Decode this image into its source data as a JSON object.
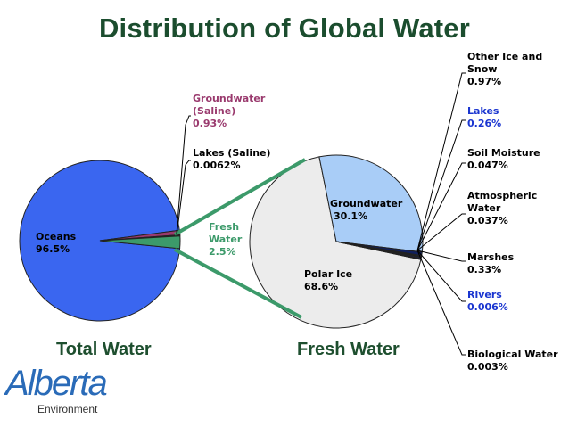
{
  "chart_data": [
    {
      "type": "pie",
      "title": "Distribution of Global Water",
      "caption": "Total Water",
      "slices": [
        {
          "label": "Oceans",
          "value": 96.5,
          "value_label": "96.5%",
          "color": "#3a66f0"
        },
        {
          "label": "Groundwater (Saline)",
          "value": 0.93,
          "value_label": "0.93%",
          "color": "#9a3a6e"
        },
        {
          "label": "Lakes (Saline)",
          "value": 0.0062,
          "value_label": "0.0062%",
          "color": "#333333"
        },
        {
          "label": "Fresh Water",
          "value": 2.5,
          "value_label": "2.5%",
          "color": "#3c9a6a"
        }
      ]
    },
    {
      "type": "pie",
      "caption": "Fresh Water",
      "slices": [
        {
          "label": "Polar Ice",
          "value": 68.6,
          "value_label": "68.6%",
          "color": "#ececec"
        },
        {
          "label": "Groundwater",
          "value": 30.1,
          "value_label": "30.1%",
          "color": "#a9cdf7"
        },
        {
          "label": "Other Ice and Snow",
          "value": 0.97,
          "value_label": "0.97%",
          "color": "#10205e"
        },
        {
          "label": "Lakes",
          "value": 0.26,
          "value_label": "0.26%",
          "color": "#1a2f9a"
        },
        {
          "label": "Soil Moisture",
          "value": 0.047,
          "value_label": "0.047%",
          "color": "#000000"
        },
        {
          "label": "Atmospheric Water",
          "value": 0.037,
          "value_label": "0.037%",
          "color": "#000000"
        },
        {
          "label": "Marshes",
          "value": 0.33,
          "value_label": "0.33%",
          "color": "#1a2f9a"
        },
        {
          "label": "Rivers",
          "value": 0.006,
          "value_label": "0.006%",
          "color": "#000000"
        },
        {
          "label": "Biological Water",
          "value": 0.003,
          "value_label": "0.003%",
          "color": "#000000"
        }
      ]
    }
  ],
  "labels": {
    "oceans": {
      "name": "Oceans",
      "value": "96.5%"
    },
    "groundwater_saline": {
      "line1": "Groundwater",
      "line2": "(Saline)",
      "value": "0.93%"
    },
    "lakes_saline": {
      "name": "Lakes (Saline)",
      "value": "0.0062%"
    },
    "fresh_water": {
      "line1": "Fresh",
      "line2": "Water",
      "value": "2.5%"
    },
    "groundwater": {
      "name": "Groundwater",
      "value": "30.1%"
    },
    "polar_ice": {
      "name": "Polar Ice",
      "value": "68.6%"
    },
    "other_ice": {
      "line1": "Other Ice and",
      "line2": "Snow",
      "value": "0.97%"
    },
    "lakes": {
      "name": "Lakes",
      "value": "0.26%"
    },
    "soil_moisture": {
      "name": "Soil Moisture",
      "value": "0.047%"
    },
    "atmospheric": {
      "line1": "Atmospheric",
      "line2": "Water",
      "value": "0.037%"
    },
    "marshes": {
      "name": "Marshes",
      "value": "0.33%"
    },
    "rivers": {
      "name": "Rivers",
      "value": "0.006%"
    },
    "biological": {
      "name": "Biological Water",
      "value": "0.003%"
    }
  },
  "captions": {
    "total": "Total Water",
    "fresh": "Fresh Water"
  },
  "logo": {
    "word": "Alberta",
    "sub": "Environment"
  },
  "colors": {
    "title": "#1b4d2e",
    "connector": "#3c9a6a",
    "groundwater_saline_text": "#9a3a6e",
    "fresh_text": "#3c9a6a",
    "blue_text": "#1a35d0"
  }
}
